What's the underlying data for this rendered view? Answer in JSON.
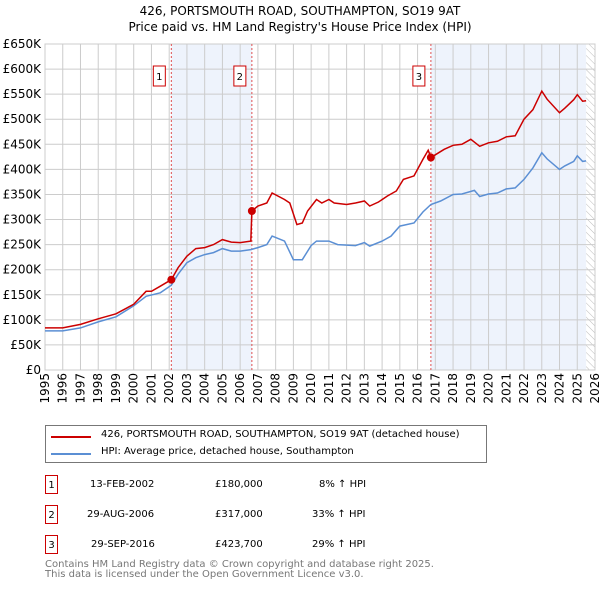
{
  "title": "426, PORTSMOUTH ROAD, SOUTHAMPTON, SO19 9AT",
  "subtitle": "Price paid vs. HM Land Registry's House Price Index (HPI)",
  "chart_data": {
    "type": "line",
    "ylim": [
      0,
      650000
    ],
    "xlim": [
      1995,
      2026
    ],
    "y_ticks": [
      {
        "v": 0,
        "l": "£0"
      },
      {
        "v": 50000,
        "l": "£50K"
      },
      {
        "v": 100000,
        "l": "£100K"
      },
      {
        "v": 150000,
        "l": "£150K"
      },
      {
        "v": 200000,
        "l": "£200K"
      },
      {
        "v": 250000,
        "l": "£250K"
      },
      {
        "v": 300000,
        "l": "£300K"
      },
      {
        "v": 350000,
        "l": "£350K"
      },
      {
        "v": 400000,
        "l": "£400K"
      },
      {
        "v": 450000,
        "l": "£450K"
      },
      {
        "v": 500000,
        "l": "£500K"
      },
      {
        "v": 550000,
        "l": "£550K"
      },
      {
        "v": 600000,
        "l": "£600K"
      },
      {
        "v": 650000,
        "l": "£650K"
      }
    ],
    "x_ticks": [
      "1995",
      "1996",
      "1997",
      "1998",
      "1999",
      "2000",
      "2001",
      "2002",
      "2003",
      "2004",
      "2005",
      "2006",
      "2007",
      "2008",
      "2009",
      "2010",
      "2011",
      "2012",
      "2013",
      "2014",
      "2015",
      "2016",
      "2017",
      "2018",
      "2019",
      "2020",
      "2021",
      "2022",
      "2023",
      "2024",
      "2025",
      "2026"
    ],
    "series": [
      {
        "name": "426, PORTSMOUTH ROAD, SOUTHAMPTON, SO19 9AT (detached house)",
        "color": "#cc0000",
        "x": [
          1995,
          1996,
          1997,
          1998,
          1999,
          2000,
          2000.7,
          2001,
          2001.5,
          2002.12,
          2002.5,
          2003,
          2003.5,
          2004,
          2004.5,
          2005,
          2005.5,
          2006,
          2006.6,
          2006.66,
          2007,
          2007.5,
          2007.8,
          2008.5,
          2008.8,
          2009.2,
          2009.5,
          2009.8,
          2010.3,
          2010.6,
          2011,
          2011.3,
          2012,
          2012.5,
          2013,
          2013.3,
          2013.8,
          2014.3,
          2014.8,
          2015.2,
          2015.8,
          2016.3,
          2016.6,
          2016.75,
          2017,
          2017.5,
          2018,
          2018.5,
          2019,
          2019.5,
          2020,
          2020.5,
          2021,
          2021.5,
          2022,
          2022.5,
          2023,
          2023.3,
          2024,
          2024.3,
          2024.8,
          2025,
          2025.3,
          2025.5
        ],
        "y": [
          84,
          84,
          91,
          102,
          112,
          131,
          157,
          157,
          167,
          180,
          204,
          227,
          242,
          244,
          250,
          260,
          255,
          254,
          257,
          317,
          327,
          333,
          353,
          340,
          333,
          290,
          293,
          317,
          340,
          333,
          340,
          333,
          330,
          333,
          337,
          327,
          335,
          347,
          357,
          380,
          387,
          420,
          438,
          423.7,
          429,
          440,
          448,
          450,
          460,
          446,
          453,
          456,
          465,
          467,
          500,
          519,
          556,
          540,
          513,
          522,
          539,
          549,
          536,
          537
        ]
      },
      {
        "name": "HPI: Average price, detached house, Southampton",
        "color": "#5b8fd4",
        "x": [
          1995,
          1996,
          1997,
          1998,
          1999,
          2000,
          2000.7,
          2001.5,
          2002.12,
          2002.5,
          2003,
          2003.5,
          2004,
          2004.5,
          2005,
          2005.5,
          2006,
          2006.6,
          2007,
          2007.5,
          2007.8,
          2008.5,
          2009,
          2009.5,
          2010,
          2010.3,
          2011,
          2011.5,
          2012.5,
          2013,
          2013.3,
          2014,
          2014.5,
          2015,
          2015.8,
          2016.3,
          2016.75,
          2017.3,
          2018,
          2018.5,
          2019.2,
          2019.5,
          2020,
          2020.5,
          2021,
          2021.5,
          2022,
          2022.5,
          2023,
          2023.3,
          2024,
          2024.3,
          2024.8,
          2025,
          2025.3,
          2025.5
        ],
        "y": [
          78,
          78,
          84,
          96,
          106,
          128,
          147,
          154,
          169,
          191,
          214,
          224,
          230,
          234,
          242,
          237,
          237,
          240,
          244,
          250,
          267,
          257,
          220,
          220,
          248,
          257,
          257,
          250,
          248,
          254,
          247,
          257,
          267,
          287,
          293,
          315,
          330,
          337,
          350,
          351,
          358,
          346,
          351,
          353,
          361,
          363,
          380,
          403,
          433,
          421,
          400,
          407,
          416,
          427,
          416,
          417
        ]
      }
    ],
    "y_units": "thousands GBP",
    "transactions": [
      {
        "n": "1",
        "date": "13-FEB-2002",
        "x": 2002.12,
        "price": "£180,000",
        "v": 180,
        "hpi": "8% ↑ HPI"
      },
      {
        "n": "2",
        "date": "29-AUG-2006",
        "x": 2006.66,
        "price": "£317,000",
        "v": 317,
        "hpi": "33% ↑ HPI"
      },
      {
        "n": "3",
        "date": "29-SEP-2016",
        "x": 2016.75,
        "price": "£423,700",
        "v": 423.7,
        "hpi": "29% ↑ HPI"
      }
    ],
    "data_end": 2025.5
  },
  "footer": [
    "Contains HM Land Registry data © Crown copyright and database right 2025.",
    "This data is licensed under the Open Government Licence v3.0."
  ]
}
